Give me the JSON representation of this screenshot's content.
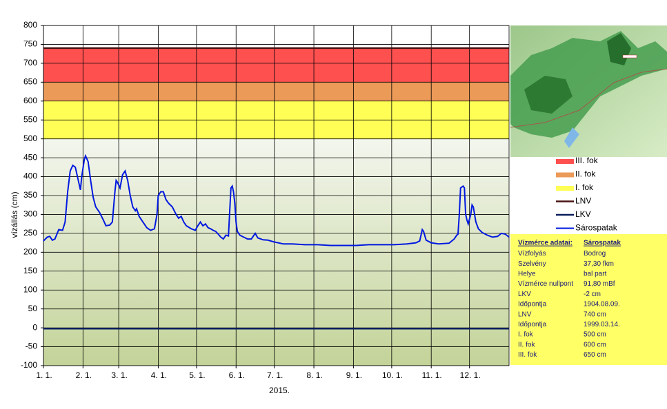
{
  "chart_data": {
    "type": "line",
    "ylabel": "vízállás (cm)",
    "xlabel": "2015.",
    "xlim": [
      0,
      365
    ],
    "xticks": [
      {
        "value": 0,
        "label": "1. 1."
      },
      {
        "value": 31,
        "label": "2. 1."
      },
      {
        "value": 59,
        "label": "3. 1."
      },
      {
        "value": 90,
        "label": "4. 1."
      },
      {
        "value": 120,
        "label": "5. 1."
      },
      {
        "value": 151,
        "label": "6. 1."
      },
      {
        "value": 181,
        "label": "7. 1."
      },
      {
        "value": 212,
        "label": "8. 1."
      },
      {
        "value": 243,
        "label": "9. 1."
      },
      {
        "value": 273,
        "label": "10. 1."
      },
      {
        "value": 304,
        "label": "11. 1."
      },
      {
        "value": 334,
        "label": "12. 1."
      }
    ],
    "ylim": [
      -100,
      800
    ],
    "yticks": [
      -100,
      -50,
      0,
      50,
      100,
      150,
      200,
      250,
      300,
      350,
      400,
      450,
      500,
      550,
      600,
      650,
      700,
      750,
      800
    ],
    "grid": true,
    "bands": [
      {
        "name": "III. fok",
        "color": "#ff5050",
        "range": [
          650,
          740
        ]
      },
      {
        "name": "II. fok",
        "color": "#eb9a58",
        "range": [
          600,
          650
        ]
      },
      {
        "name": "I. fok",
        "color": "#ffff55",
        "range": [
          500,
          600
        ]
      }
    ],
    "lines": [
      {
        "name": "LNV",
        "color": "#4a1414",
        "value": 740
      },
      {
        "name": "LKV",
        "color": "#0a1f5c",
        "value": -2
      }
    ],
    "series": [
      {
        "name": "Sárospatak",
        "color": "#0018e0",
        "x": [
          0,
          3,
          5,
          7,
          9,
          12,
          15,
          17,
          19,
          21,
          23,
          25,
          27,
          29,
          30,
          32,
          33,
          35,
          37,
          39,
          41,
          44,
          47,
          49,
          52,
          54,
          56,
          57,
          58,
          60,
          62,
          64,
          66,
          68,
          70,
          72,
          73,
          75,
          78,
          81,
          84,
          87,
          89,
          90,
          92,
          94,
          96,
          98,
          101,
          104,
          106,
          108,
          110,
          112,
          116,
          119,
          121,
          123,
          125,
          127,
          129,
          131,
          133,
          135,
          137,
          139,
          141,
          143,
          145,
          147,
          148,
          149,
          150,
          151,
          152,
          154,
          157,
          160,
          163,
          166,
          168,
          172,
          176,
          180,
          184,
          188,
          195,
          205,
          215,
          225,
          235,
          245,
          255,
          265,
          275,
          285,
          292,
          295,
          297,
          298,
          300,
          304,
          310,
          318,
          322,
          324,
          325,
          326,
          327,
          329,
          330,
          331,
          332,
          333,
          335,
          336,
          337,
          339,
          341,
          344,
          348,
          352,
          356,
          359,
          362,
          365
        ],
        "values": [
          230,
          240,
          242,
          232,
          235,
          260,
          258,
          280,
          360,
          415,
          430,
          425,
          395,
          365,
          400,
          445,
          455,
          440,
          390,
          345,
          320,
          305,
          285,
          270,
          272,
          280,
          360,
          390,
          385,
          370,
          405,
          415,
          390,
          350,
          320,
          310,
          315,
          295,
          280,
          265,
          258,
          262,
          300,
          350,
          360,
          360,
          340,
          330,
          320,
          300,
          290,
          295,
          280,
          270,
          262,
          258,
          270,
          280,
          270,
          275,
          265,
          262,
          258,
          255,
          248,
          240,
          235,
          245,
          243,
          370,
          375,
          360,
          330,
          280,
          255,
          245,
          240,
          235,
          235,
          250,
          238,
          233,
          232,
          228,
          225,
          222,
          222,
          220,
          220,
          218,
          218,
          218,
          220,
          220,
          220,
          222,
          225,
          230,
          260,
          255,
          232,
          225,
          222,
          224,
          235,
          245,
          248,
          300,
          370,
          375,
          370,
          300,
          285,
          275,
          300,
          325,
          320,
          280,
          262,
          252,
          245,
          240,
          242,
          250,
          248,
          240
        ]
      }
    ],
    "legend": "right"
  },
  "info_table": {
    "title": [
      "Vízmérce adatai:",
      "Sárospatak"
    ],
    "rows": [
      [
        "Vízfolyás",
        "Bodrog"
      ],
      [
        "Szelvény",
        "37,30 fkm"
      ],
      [
        "Helye",
        "bal part"
      ],
      [
        "Vízmérce nullpont",
        "91,80 mBf"
      ],
      [
        "LKV",
        "-2 cm"
      ],
      [
        "Időpontja",
        "1904.08.09."
      ],
      [
        "LNV",
        "740 cm"
      ],
      [
        "Időpontja",
        "1999.03.14."
      ],
      [
        "I. fok",
        "500 cm"
      ],
      [
        "II. fok",
        "600 cm"
      ],
      [
        "III. fok",
        "650 cm"
      ]
    ]
  }
}
